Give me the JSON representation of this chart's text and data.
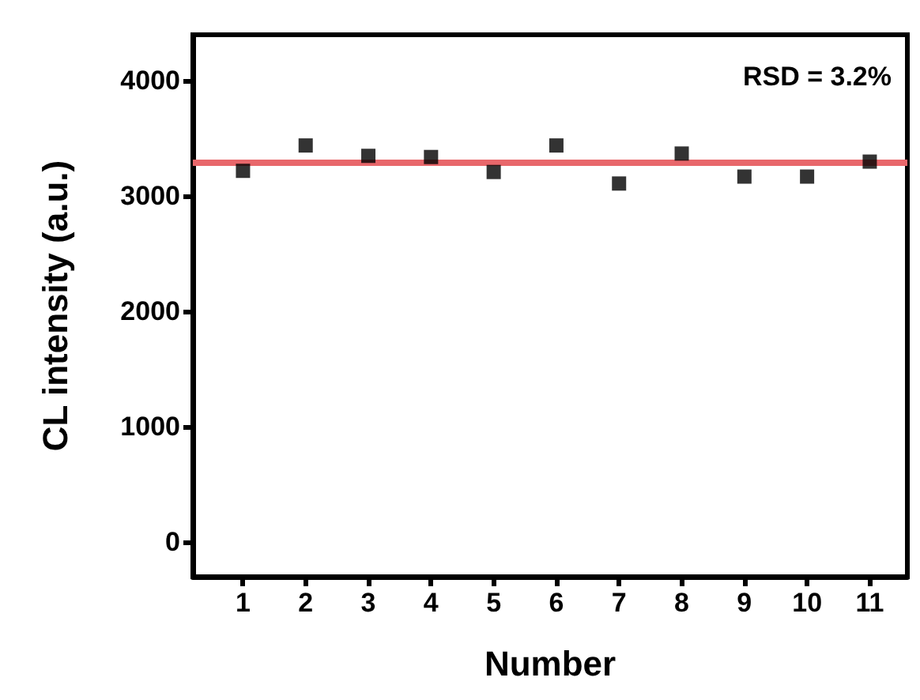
{
  "chart_data": {
    "type": "scatter",
    "xlabel": "Number",
    "ylabel": "CL intensity (a.u.)",
    "annotations": [
      "RSD = 3.2%"
    ],
    "x": [
      1,
      2,
      3,
      4,
      5,
      6,
      7,
      8,
      9,
      10,
      11
    ],
    "series": [
      {
        "color": "#000000",
        "values": [
          3220,
          3440,
          3350,
          3340,
          3210,
          3440,
          3110,
          3370,
          3170,
          3170,
          3300
        ]
      }
    ],
    "xlim": [
      0.2,
      11.6
    ],
    "xticks": [
      1,
      2,
      3,
      4,
      5,
      6,
      7,
      8,
      9,
      10,
      11
    ],
    "ylim": [
      -300,
      4400
    ],
    "yticks": [
      0,
      1000,
      2000,
      3000,
      4000
    ],
    "ref_lines": [
      {
        "axis": "y",
        "value": 3290,
        "color": "#e8676b",
        "line_style": "solid"
      }
    ],
    "marker": "square",
    "grid": false
  }
}
